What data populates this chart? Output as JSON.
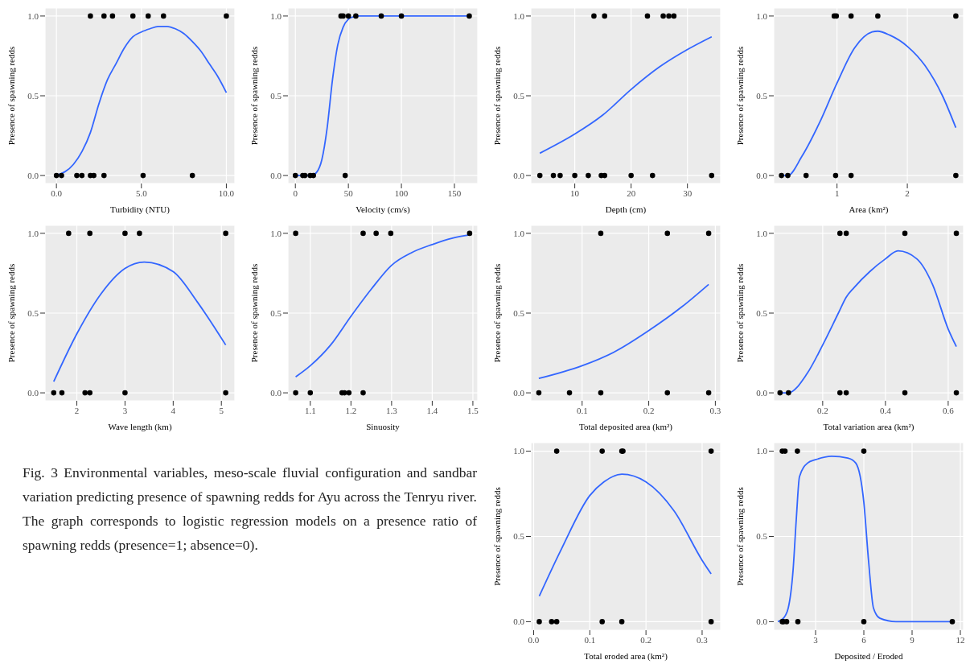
{
  "chart_data": [
    {
      "type": "scatter",
      "xlabel": "Turbidity (NTU)",
      "ylabel": "Presence of spawning redds",
      "xlim": [
        -0.67,
        10.5
      ],
      "xticks": [
        {
          "value": 0,
          "label": "0.0"
        },
        {
          "value": 5,
          "label": "5.0"
        },
        {
          "value": 10,
          "label": "10.0"
        }
      ],
      "ylim": [
        -0.05,
        1.05
      ],
      "yticks": [
        {
          "value": 0,
          "label": "0.0"
        },
        {
          "value": 0.5,
          "label": "0.5"
        },
        {
          "value": 1,
          "label": "1.0"
        }
      ],
      "grid": true,
      "series": [
        {
          "type": "scatter",
          "marker": "circle",
          "color": "#000000",
          "x": [
            2.0,
            2.8,
            3.3,
            4.5,
            5.4,
            6.3,
            10.0,
            0,
            0.3,
            1.2,
            1.5,
            2.0,
            2.2,
            2.8,
            5.1,
            8.0
          ],
          "values": [
            1,
            1,
            1,
            1,
            1,
            1,
            1,
            0,
            0,
            0,
            0,
            0,
            0,
            0,
            0,
            0
          ]
        },
        {
          "type": "line",
          "color": "#3366ff",
          "x": [
            0,
            1,
            1.5,
            2,
            2.5,
            3,
            3.5,
            4,
            4.5,
            5,
            5.5,
            6,
            6.5,
            7,
            7.5,
            8,
            8.5,
            9,
            9.5,
            10
          ],
          "values": [
            0,
            0.07,
            0.15,
            0.27,
            0.45,
            0.6,
            0.7,
            0.8,
            0.87,
            0.9,
            0.92,
            0.935,
            0.935,
            0.92,
            0.89,
            0.84,
            0.78,
            0.7,
            0.62,
            0.52
          ]
        }
      ]
    },
    {
      "type": "scatter",
      "xlabel": "Velocity (cm/s)",
      "ylabel": "Presence of spawning redds",
      "xlim": [
        -7,
        172
      ],
      "xticks": [
        0,
        50,
        100,
        150
      ],
      "ylim": [
        -0.05,
        1.05
      ],
      "yticks": [
        {
          "value": 0,
          "label": "0.0"
        },
        {
          "value": 0.5,
          "label": "0.5"
        },
        {
          "value": 1,
          "label": "1.0"
        }
      ],
      "grid": true,
      "series": [
        {
          "type": "scatter",
          "marker": "circle",
          "color": "#000000",
          "x": [
            43,
            45,
            50,
            57,
            81,
            100,
            164,
            0,
            7,
            9,
            14,
            17,
            47
          ],
          "values": [
            1,
            1,
            1,
            1,
            1,
            1,
            1,
            0,
            0,
            0,
            0,
            0,
            0
          ]
        },
        {
          "type": "line",
          "color": "#3366ff",
          "x": [
            0,
            10,
            15,
            20,
            25,
            30,
            35,
            40,
            45,
            50,
            55,
            60,
            100,
            164
          ],
          "values": [
            0,
            0,
            0,
            0.02,
            0.1,
            0.3,
            0.6,
            0.82,
            0.93,
            0.98,
            0.995,
            1,
            1,
            1
          ]
        }
      ]
    },
    {
      "type": "scatter",
      "xlabel": "Depth (cm)",
      "ylabel": "Presence of spawning redds",
      "xlim": [
        2.2,
        35.9
      ],
      "xticks": [
        10,
        20,
        30
      ],
      "ylim": [
        -0.05,
        1.05
      ],
      "yticks": [
        {
          "value": 0,
          "label": "0.0"
        },
        {
          "value": 0.5,
          "label": "0.5"
        },
        {
          "value": 1,
          "label": "1.0"
        }
      ],
      "grid": true,
      "series": [
        {
          "type": "scatter",
          "marker": "circle",
          "color": "#000000",
          "x": [
            13.4,
            15.3,
            22.9,
            25.7,
            26.7,
            27.6,
            3.8,
            6.2,
            7.4,
            10,
            12.4,
            14.7,
            15.3,
            20,
            23.8,
            34.3
          ],
          "values": [
            1,
            1,
            1,
            1,
            1,
            1,
            0,
            0,
            0,
            0,
            0,
            0,
            0,
            0,
            0,
            0
          ]
        },
        {
          "type": "line",
          "color": "#3366ff",
          "x": [
            3.8,
            10,
            15,
            20,
            25,
            30,
            34.3
          ],
          "values": [
            0.14,
            0.26,
            0.38,
            0.54,
            0.68,
            0.79,
            0.87
          ]
        }
      ]
    },
    {
      "type": "scatter",
      "xlabel": "Area (km²)",
      "ylabel": "Presence of spawning redds",
      "xlim": [
        0.1,
        2.8
      ],
      "xticks": [
        1,
        2
      ],
      "ylim": [
        -0.05,
        1.05
      ],
      "yticks": [
        {
          "value": 0,
          "label": "0.0"
        },
        {
          "value": 0.5,
          "label": "0.5"
        },
        {
          "value": 1,
          "label": "1.0"
        }
      ],
      "grid": true,
      "series": [
        {
          "type": "scatter",
          "marker": "circle",
          "color": "#000000",
          "x": [
            0.96,
            0.99,
            1.2,
            1.58,
            2.69,
            0.21,
            0.3,
            0.56,
            0.98,
            1.2,
            2.69
          ],
          "values": [
            1,
            1,
            1,
            1,
            1,
            0,
            0,
            0,
            0,
            0,
            0
          ]
        },
        {
          "type": "line",
          "color": "#3366ff",
          "x": [
            0.21,
            0.3,
            0.5,
            0.75,
            1.0,
            1.25,
            1.5,
            1.58,
            1.75,
            2.0,
            2.25,
            2.5,
            2.69
          ],
          "values": [
            0,
            0,
            0.12,
            0.33,
            0.58,
            0.8,
            0.9,
            0.905,
            0.88,
            0.81,
            0.69,
            0.5,
            0.3
          ]
        }
      ]
    },
    {
      "type": "scatter",
      "xlabel": "Wave length (km)",
      "ylabel": "Presence of spawning redds",
      "xlim": [
        1.34,
        5.28
      ],
      "xticks": [
        2,
        3,
        4,
        5
      ],
      "ylim": [
        -0.05,
        1.05
      ],
      "yticks": [
        {
          "value": 0,
          "label": "0.0"
        },
        {
          "value": 0.5,
          "label": "0.5"
        },
        {
          "value": 1,
          "label": "1.0"
        }
      ],
      "grid": true,
      "series": [
        {
          "type": "scatter",
          "marker": "circle",
          "color": "#000000",
          "x": [
            1.83,
            2.27,
            3.0,
            3.3,
            5.09,
            1.52,
            1.69,
            2.17,
            2.27,
            3.0,
            5.09
          ],
          "values": [
            1,
            1,
            1,
            1,
            1,
            0,
            0,
            0,
            0,
            0,
            0
          ]
        },
        {
          "type": "line",
          "color": "#3366ff",
          "x": [
            1.52,
            2,
            2.5,
            3,
            3.4,
            4,
            4.5,
            5.09
          ],
          "values": [
            0.07,
            0.37,
            0.62,
            0.78,
            0.82,
            0.76,
            0.57,
            0.3
          ]
        }
      ]
    },
    {
      "type": "scatter",
      "xlabel": "Sinuosity",
      "ylabel": "Presence of spawning redds",
      "xlim": [
        1.045,
        1.512
      ],
      "xticks": [
        1.1,
        1.2,
        1.3,
        1.4,
        1.5
      ],
      "ylim": [
        -0.05,
        1.05
      ],
      "yticks": [
        {
          "value": 0,
          "label": "0.0"
        },
        {
          "value": 0.5,
          "label": "0.5"
        },
        {
          "value": 1,
          "label": "1.0"
        }
      ],
      "grid": true,
      "series": [
        {
          "type": "scatter",
          "marker": "circle",
          "color": "#000000",
          "x": [
            1.064,
            1.23,
            1.262,
            1.298,
            1.492,
            1.064,
            1.1,
            1.178,
            1.184,
            1.195,
            1.23
          ],
          "values": [
            1,
            1,
            1,
            1,
            1,
            0,
            0,
            0,
            0,
            0,
            0
          ]
        },
        {
          "type": "line",
          "color": "#3366ff",
          "x": [
            1.064,
            1.1,
            1.15,
            1.2,
            1.25,
            1.3,
            1.35,
            1.4,
            1.45,
            1.492
          ],
          "values": [
            0.1,
            0.17,
            0.3,
            0.48,
            0.65,
            0.8,
            0.88,
            0.93,
            0.97,
            0.99
          ]
        }
      ]
    },
    {
      "type": "scatter",
      "xlabel": "Total deposited area (km²)",
      "ylabel": "Presence of spawning redds",
      "xlim": [
        0.023,
        0.308
      ],
      "xticks": [
        0.1,
        0.2,
        0.3
      ],
      "ylim": [
        -0.05,
        1.05
      ],
      "yticks": [
        {
          "value": 0,
          "label": "0.0"
        },
        {
          "value": 0.5,
          "label": "0.5"
        },
        {
          "value": 1,
          "label": "1.0"
        }
      ],
      "grid": true,
      "series": [
        {
          "type": "scatter",
          "marker": "circle",
          "color": "#000000",
          "x": [
            0.128,
            0.228,
            0.29,
            0.035,
            0.081,
            0.128,
            0.228,
            0.29
          ],
          "values": [
            1,
            1,
            1,
            0,
            0,
            0,
            0,
            0
          ]
        },
        {
          "type": "line",
          "color": "#3366ff",
          "x": [
            0.035,
            0.1,
            0.15,
            0.2,
            0.25,
            0.29
          ],
          "values": [
            0.09,
            0.17,
            0.26,
            0.39,
            0.54,
            0.68
          ]
        }
      ]
    },
    {
      "type": "scatter",
      "xlabel": "Total variation area (km²)",
      "ylabel": "Presence of spawning redds",
      "xlim": [
        0.044,
        0.649
      ],
      "xticks": [
        0.2,
        0.4,
        0.6
      ],
      "ylim": [
        -0.05,
        1.05
      ],
      "yticks": [
        {
          "value": 0,
          "label": "0.0"
        },
        {
          "value": 0.5,
          "label": "0.5"
        },
        {
          "value": 1,
          "label": "1.0"
        }
      ],
      "grid": true,
      "series": [
        {
          "type": "scatter",
          "marker": "circle",
          "color": "#000000",
          "x": [
            0.255,
            0.275,
            0.462,
            0.626,
            0.064,
            0.091,
            0.255,
            0.275,
            0.462,
            0.626
          ],
          "values": [
            1,
            1,
            1,
            1,
            0,
            0,
            0,
            0,
            0,
            0
          ]
        },
        {
          "type": "line",
          "color": "#3366ff",
          "x": [
            0.064,
            0.09,
            0.15,
            0.2,
            0.25,
            0.275,
            0.3,
            0.35,
            0.4,
            0.44,
            0.5,
            0.55,
            0.6,
            0.626
          ],
          "values": [
            0,
            0,
            0.12,
            0.3,
            0.5,
            0.6,
            0.66,
            0.76,
            0.84,
            0.89,
            0.84,
            0.68,
            0.4,
            0.29
          ]
        }
      ]
    },
    {
      "type": "other",
      "annotations": [
        "Fig. 3 Environmental variables, meso-scale fluvial configuration and sandbar variation predicting presence of spawning redds for Ayu across the Tenryu river. The graph corresponds to logistic regression models on a presence ratio of spawning redds (presence=1; absence=0)."
      ]
    },
    {
      "type": "scatter",
      "xlabel": "Total eroded area (km²)",
      "ylabel": "Presence of spawning redds",
      "xlim": [
        -0.005,
        0.333
      ],
      "xticks": [
        {
          "value": 0,
          "label": "0.0"
        },
        0.1,
        0.2,
        0.3
      ],
      "ylim": [
        -0.05,
        1.05
      ],
      "yticks": [
        {
          "value": 0,
          "label": "0.0"
        },
        {
          "value": 0.5,
          "label": "0.5"
        },
        {
          "value": 1,
          "label": "1.0"
        }
      ],
      "grid": true,
      "series": [
        {
          "type": "scatter",
          "marker": "circle",
          "color": "#000000",
          "x": [
            0.041,
            0.122,
            0.157,
            0.159,
            0.316,
            0.01,
            0.032,
            0.041,
            0.122,
            0.157,
            0.316
          ],
          "values": [
            1,
            1,
            1,
            1,
            1,
            0,
            0,
            0,
            0,
            0,
            0
          ]
        },
        {
          "type": "line",
          "color": "#3366ff",
          "x": [
            0.01,
            0.05,
            0.1,
            0.125,
            0.157,
            0.2,
            0.25,
            0.3,
            0.316
          ],
          "values": [
            0.15,
            0.43,
            0.74,
            0.82,
            0.865,
            0.82,
            0.65,
            0.36,
            0.28
          ]
        }
      ]
    },
    {
      "type": "scatter",
      "xlabel": "Deposited / Eroded",
      "ylabel": "Presence of spawning redds",
      "xlim": [
        0.4,
        12.2
      ],
      "xticks": [
        3,
        6,
        9,
        12
      ],
      "ylim": [
        -0.05,
        1.05
      ],
      "yticks": [
        {
          "value": 0,
          "label": "0.0"
        },
        {
          "value": 0.5,
          "label": "0.5"
        },
        {
          "value": 1,
          "label": "1.0"
        }
      ],
      "grid": true,
      "series": [
        {
          "type": "scatter",
          "marker": "circle",
          "color": "#000000",
          "x": [
            0.93,
            1.1,
            1.87,
            6.0,
            0.93,
            1.0,
            1.2,
            1.9,
            6.0,
            11.5
          ],
          "values": [
            1,
            1,
            1,
            1,
            0,
            0,
            0,
            0,
            0,
            0
          ]
        },
        {
          "type": "line",
          "color": "#3366ff",
          "x": [
            0.65,
            1.0,
            1.3,
            1.6,
            1.8,
            2.0,
            2.5,
            3,
            4,
            5,
            5.5,
            6,
            6.3,
            6.6,
            7,
            8,
            11.5
          ],
          "values": [
            0,
            0.02,
            0.08,
            0.3,
            0.6,
            0.85,
            0.93,
            0.95,
            0.97,
            0.96,
            0.93,
            0.7,
            0.35,
            0.08,
            0.02,
            0,
            0
          ]
        }
      ]
    }
  ]
}
